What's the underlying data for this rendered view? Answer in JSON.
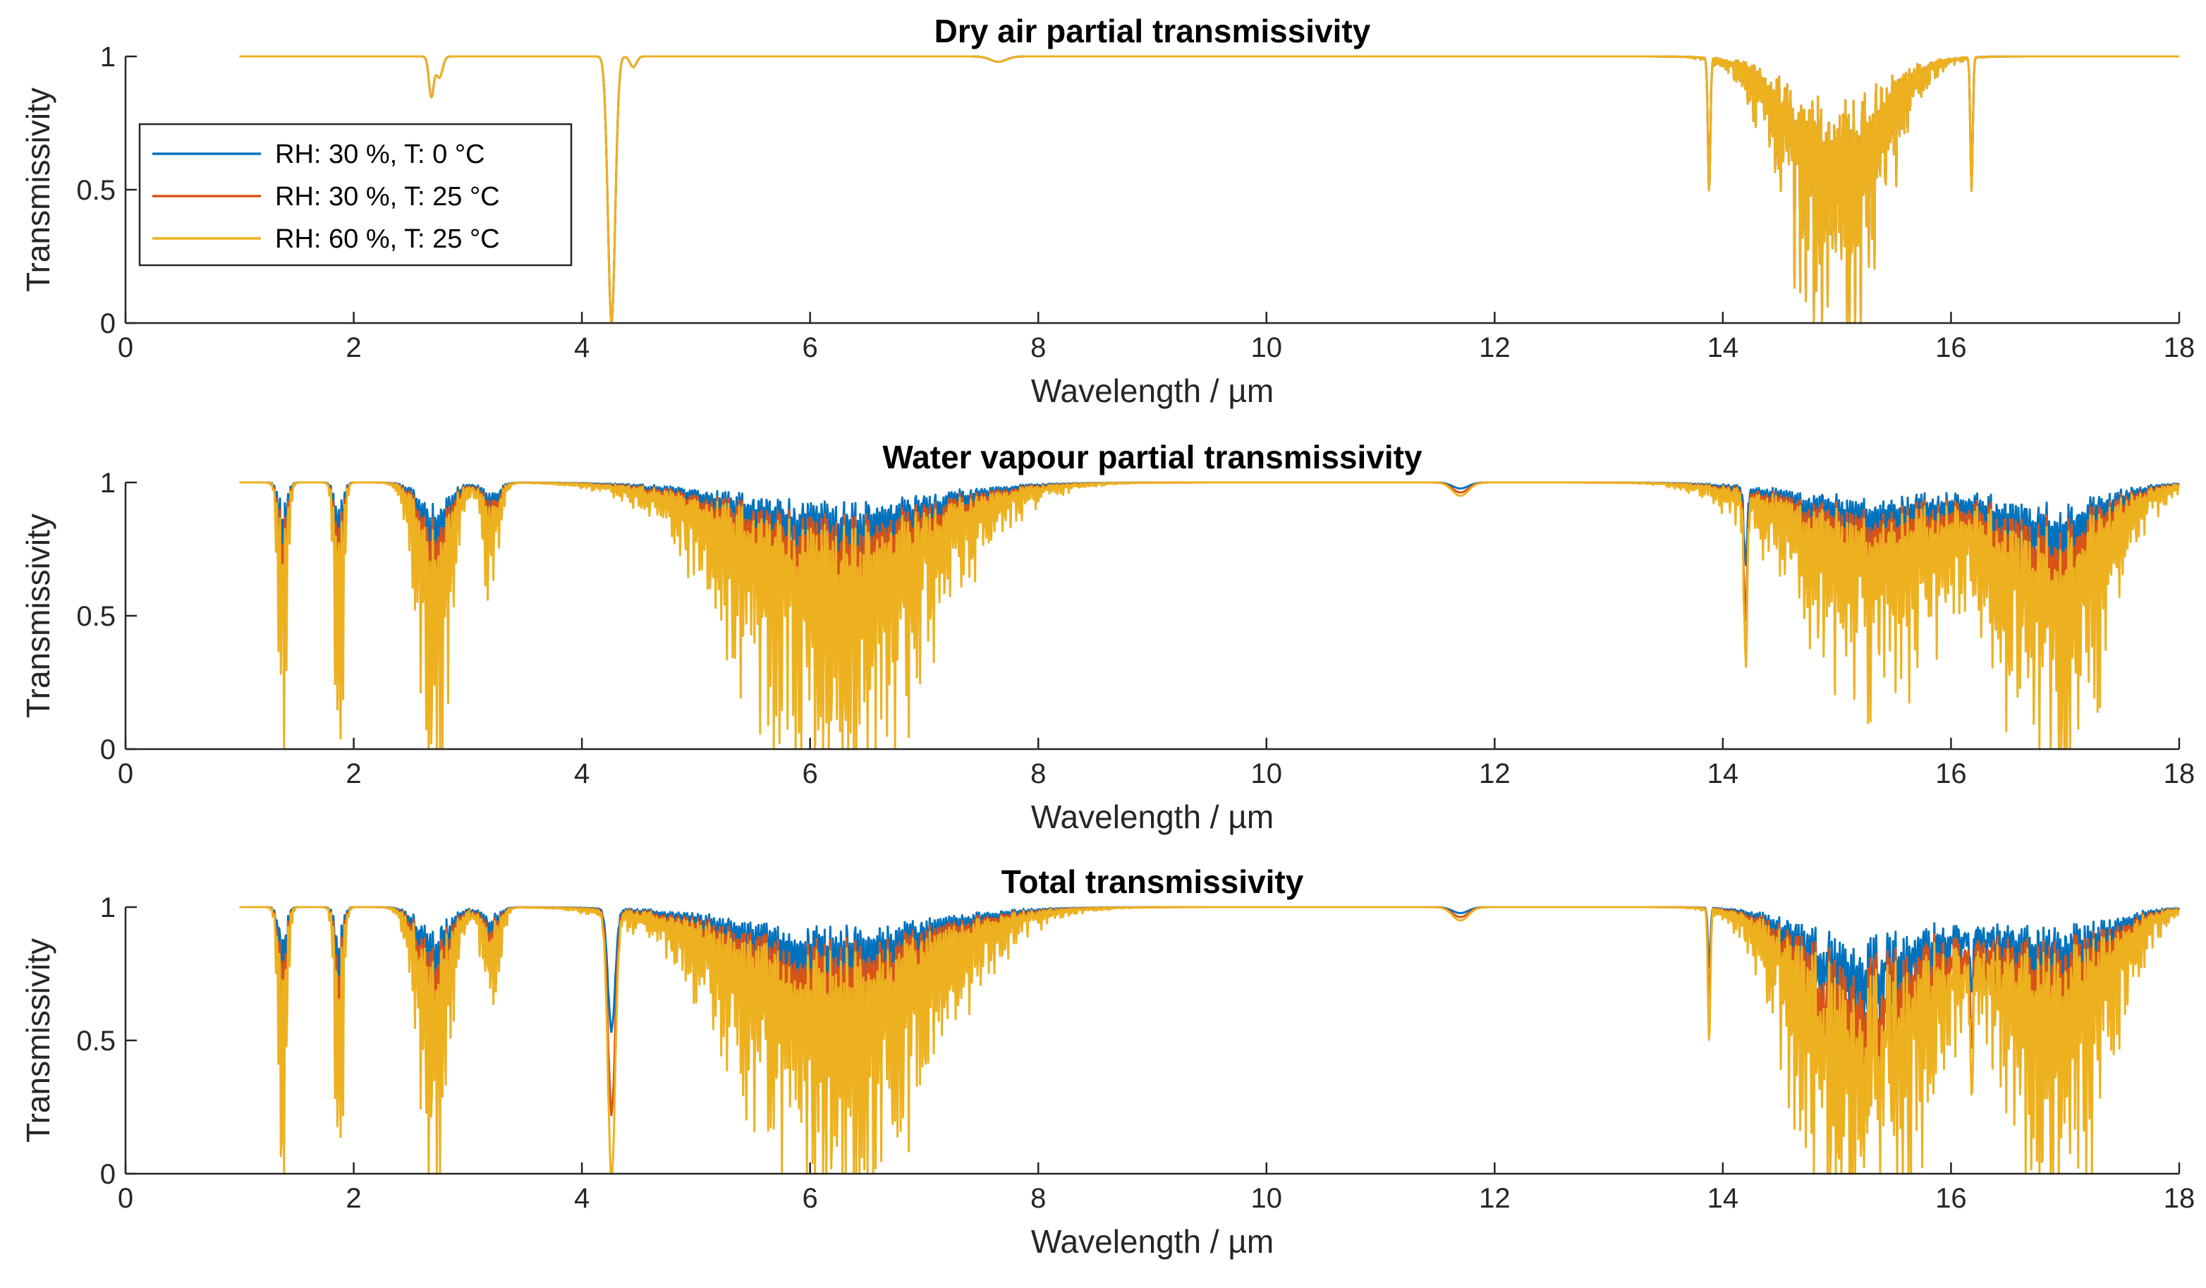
{
  "chart_data": [
    {
      "type": "line",
      "title": "Dry air partial transmissivity",
      "xlabel": "Wavelength / µm",
      "ylabel": "Transmissivity",
      "xlim": [
        0,
        18
      ],
      "ylim": [
        0,
        1
      ],
      "xticks": [
        "0",
        "2",
        "4",
        "6",
        "8",
        "10",
        "12",
        "14",
        "16",
        "18"
      ],
      "yticks": [
        "0",
        "0.5",
        "1"
      ],
      "x_range": [
        1,
        18
      ],
      "features": [
        {
          "center": 2.68,
          "depth": 0.15,
          "width": 0.03
        },
        {
          "center": 2.75,
          "depth": 0.08,
          "width": 0.04
        },
        {
          "center": 4.26,
          "depth": 1.0,
          "width": 0.045
        },
        {
          "center": 4.45,
          "depth": 0.04,
          "width": 0.04
        },
        {
          "center": 7.65,
          "depth": 0.02,
          "width": 0.1
        },
        {
          "center": 13.88,
          "depth": 0.5,
          "width": 0.015
        },
        {
          "center": 14.98,
          "depth": 1.0,
          "width": 0.55,
          "comb": true
        },
        {
          "center": 16.18,
          "depth": 0.5,
          "width": 0.015
        }
      ],
      "series": [
        {
          "name": "RH: 30 %, T: 0 °C",
          "color": "#0072BD",
          "scale": 1.0
        },
        {
          "name": "RH: 30 %, T: 25 °C",
          "color": "#D95319",
          "scale": 1.0
        },
        {
          "name": "RH: 60 %, T: 25 °C",
          "color": "#EDB120",
          "scale": 1.0
        }
      ],
      "legend": {
        "location": "top-left",
        "entries": [
          "RH: 30 %, T: 0 °C",
          "RH: 30 %, T: 25 °C",
          "RH: 60 %, T: 25 °C"
        ]
      }
    },
    {
      "type": "line",
      "title": "Water vapour partial transmissivity",
      "xlabel": "Wavelength / µm",
      "ylabel": "Transmissivity",
      "xlim": [
        0,
        18
      ],
      "ylim": [
        0,
        1
      ],
      "xticks": [
        "0",
        "2",
        "4",
        "6",
        "8",
        "10",
        "12",
        "14",
        "16",
        "18"
      ],
      "yticks": [
        "0",
        "0.5",
        "1"
      ],
      "x_range": [
        1,
        18
      ],
      "features": [
        {
          "center": 1.38,
          "depth": 1.0,
          "width": 0.05,
          "comb": true
        },
        {
          "center": 1.87,
          "depth": 1.0,
          "width": 0.05,
          "comb": true
        },
        {
          "center": 2.7,
          "depth": 1.0,
          "width": 0.18,
          "comb": true
        },
        {
          "center": 3.2,
          "depth": 0.4,
          "width": 0.1,
          "comb": true
        },
        {
          "center": 6.2,
          "depth": 1.0,
          "width": 1.1,
          "comb": true
        },
        {
          "center": 11.7,
          "depth": 0.05,
          "width": 0.1
        },
        {
          "center": 14.2,
          "depth": 0.6,
          "width": 0.02
        },
        {
          "center": 15.3,
          "depth": 0.7,
          "width": 0.9,
          "comb": true
        },
        {
          "center": 16.9,
          "depth": 1.0,
          "width": 0.6,
          "comb": true
        }
      ],
      "series": [
        {
          "name": "RH: 30 %, T: 0 °C",
          "color": "#0072BD",
          "scale": 0.45
        },
        {
          "name": "RH: 30 %, T: 25 °C",
          "color": "#D95319",
          "scale": 0.75
        },
        {
          "name": "RH: 60 %, T: 25 °C",
          "color": "#EDB120",
          "scale": 1.0
        }
      ]
    },
    {
      "type": "line",
      "title": "Total transmissivity",
      "xlabel": "Wavelength / µm",
      "ylabel": "Transmissivity",
      "xlim": [
        0,
        18
      ],
      "ylim": [
        0,
        1
      ],
      "xticks": [
        "0",
        "2",
        "4",
        "6",
        "8",
        "10",
        "12",
        "14",
        "16",
        "18"
      ],
      "yticks": [
        "0",
        "0.5",
        "1"
      ],
      "x_range": [
        1,
        18
      ],
      "features": [
        {
          "center": 1.38,
          "depth": 1.0,
          "width": 0.05,
          "comb": true
        },
        {
          "center": 1.87,
          "depth": 1.0,
          "width": 0.05,
          "comb": true
        },
        {
          "center": 2.7,
          "depth": 1.0,
          "width": 0.18,
          "comb": true
        },
        {
          "center": 3.2,
          "depth": 0.4,
          "width": 0.1,
          "comb": true
        },
        {
          "center": 4.26,
          "depth": 1.0,
          "width": 0.045
        },
        {
          "center": 6.2,
          "depth": 1.0,
          "width": 1.1,
          "comb": true
        },
        {
          "center": 11.7,
          "depth": 0.05,
          "width": 0.1
        },
        {
          "center": 13.88,
          "depth": 0.5,
          "width": 0.015
        },
        {
          "center": 14.98,
          "depth": 1.0,
          "width": 0.55,
          "comb": true
        },
        {
          "center": 15.6,
          "depth": 0.7,
          "width": 0.6,
          "comb": true
        },
        {
          "center": 16.18,
          "depth": 0.5,
          "width": 0.015
        },
        {
          "center": 16.9,
          "depth": 1.0,
          "width": 0.6,
          "comb": true
        }
      ],
      "series": [
        {
          "name": "RH: 30 %, T: 0 °C",
          "color": "#0072BD",
          "scale": 0.45
        },
        {
          "name": "RH: 30 %, T: 25 °C",
          "color": "#D95319",
          "scale": 0.75
        },
        {
          "name": "RH: 60 %, T: 25 °C",
          "color": "#EDB120",
          "scale": 1.0
        }
      ]
    }
  ]
}
